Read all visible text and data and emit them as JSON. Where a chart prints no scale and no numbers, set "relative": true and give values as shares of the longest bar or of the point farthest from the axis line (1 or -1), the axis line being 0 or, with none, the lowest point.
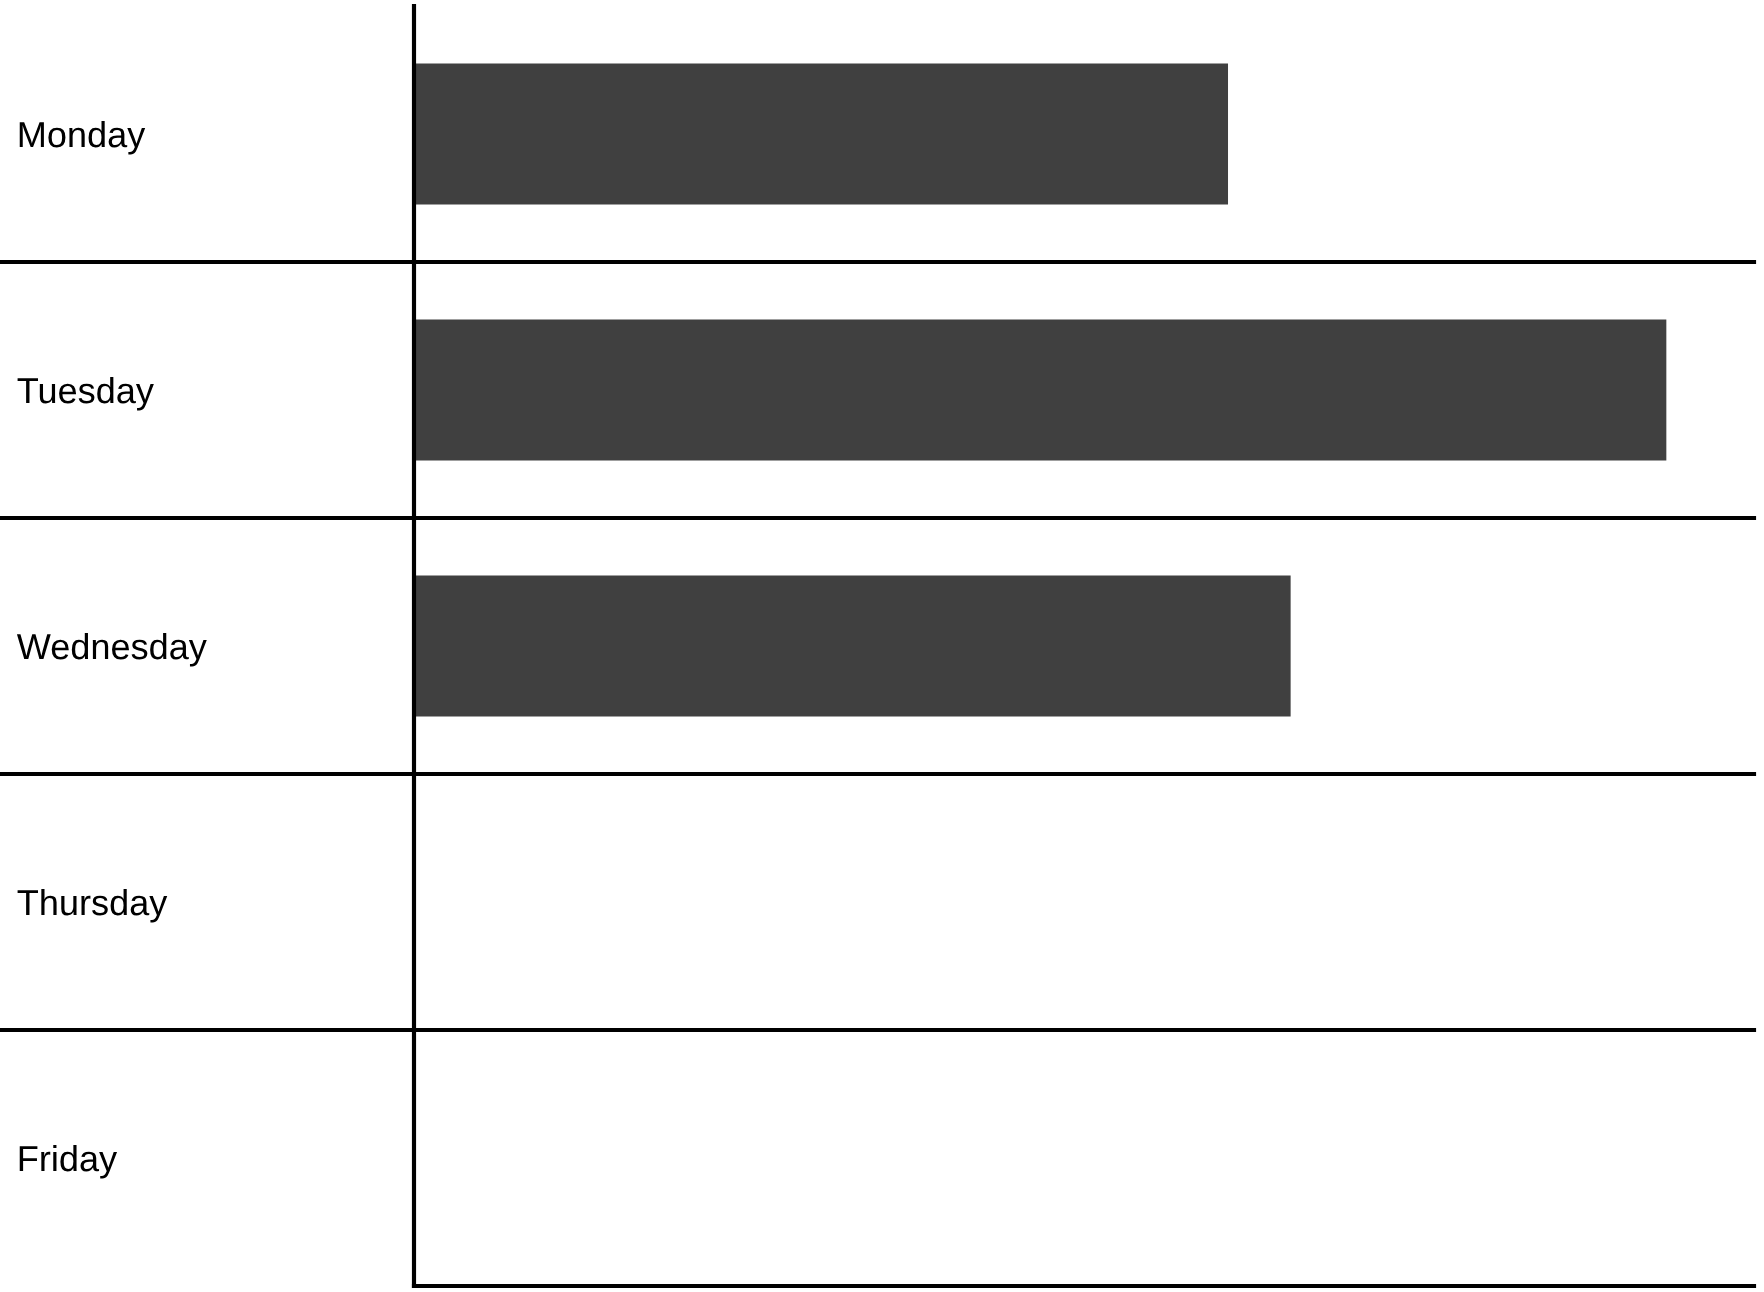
{
  "chart_data": {
    "type": "bar",
    "orientation": "horizontal",
    "relative": true,
    "categories": [
      "Monday",
      "Tuesday",
      "Wednesday",
      "Thursday",
      "Friday"
    ],
    "values": [
      0.65,
      1,
      0.7,
      null,
      null
    ],
    "color": "#404040"
  }
}
